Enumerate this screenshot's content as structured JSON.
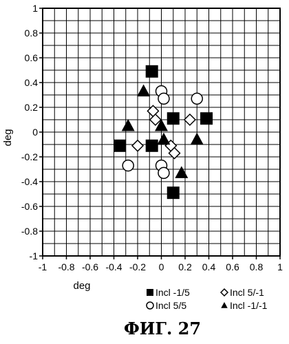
{
  "chart_data": {
    "type": "scatter",
    "xlabel": "deg",
    "ylabel": "deg",
    "xlim": [
      -1,
      1
    ],
    "ylim": [
      -1,
      1
    ],
    "x_ticks": [
      "-1",
      "-0.8",
      "-0.6",
      "-0.4",
      "-0.2",
      "0",
      "0.2",
      "0.4",
      "0.6",
      "0.8",
      "1"
    ],
    "y_ticks": [
      "-1",
      "-0.8",
      "-0.6",
      "-0.4",
      "-0.2",
      "0",
      "0.2",
      "0.4",
      "0.6",
      "0.8",
      "1"
    ],
    "grid": true,
    "grid_step": 0.1,
    "legend_position": "bottom-right",
    "series": [
      {
        "name": "Incl -1/5",
        "marker": "filled-square",
        "points": [
          {
            "x": -0.08,
            "y": 0.49
          },
          {
            "x": 0.1,
            "y": 0.11
          },
          {
            "x": 0.38,
            "y": 0.11
          },
          {
            "x": -0.35,
            "y": -0.11
          },
          {
            "x": -0.08,
            "y": -0.11
          },
          {
            "x": 0.1,
            "y": -0.49
          }
        ]
      },
      {
        "name": "Incl 5/-1",
        "marker": "open-diamond",
        "points": [
          {
            "x": -0.07,
            "y": 0.17
          },
          {
            "x": -0.05,
            "y": 0.1
          },
          {
            "x": 0.24,
            "y": 0.1
          },
          {
            "x": -0.2,
            "y": -0.11
          },
          {
            "x": 0.08,
            "y": -0.11
          },
          {
            "x": 0.11,
            "y": -0.17
          }
        ]
      },
      {
        "name": "Incl 5/5",
        "marker": "open-circle",
        "points": [
          {
            "x": 0.0,
            "y": 0.33
          },
          {
            "x": 0.02,
            "y": 0.27
          },
          {
            "x": 0.3,
            "y": 0.27
          },
          {
            "x": -0.28,
            "y": -0.27
          },
          {
            "x": 0.0,
            "y": -0.27
          },
          {
            "x": 0.02,
            "y": -0.33
          }
        ]
      },
      {
        "name": "Incl -1/-1",
        "marker": "filled-triangle",
        "points": [
          {
            "x": -0.15,
            "y": 0.33
          },
          {
            "x": 0.0,
            "y": 0.05
          },
          {
            "x": -0.28,
            "y": 0.05
          },
          {
            "x": 0.02,
            "y": -0.06
          },
          {
            "x": 0.3,
            "y": -0.06
          },
          {
            "x": 0.17,
            "y": -0.33
          }
        ]
      }
    ],
    "legend_rows": [
      [
        "Incl -1/5",
        "Incl 5/-1"
      ],
      [
        "Incl 5/5",
        "Incl -1/-1"
      ]
    ]
  },
  "caption": "ФИГ. 27"
}
